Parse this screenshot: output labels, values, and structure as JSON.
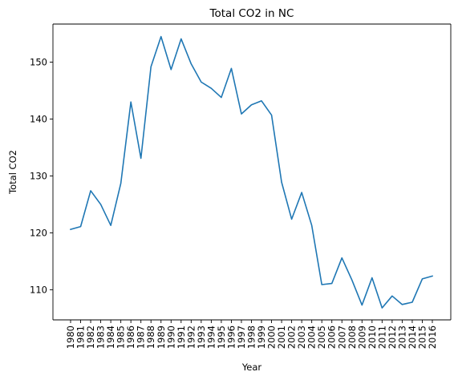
{
  "chart_data": {
    "type": "line",
    "title": "Total CO2 in NC",
    "xlabel": "Year",
    "ylabel": "Total CO2",
    "x": [
      "1980",
      "1981",
      "1982",
      "1983",
      "1984",
      "1985",
      "1986",
      "1987",
      "1988",
      "1989",
      "1990",
      "1991",
      "1992",
      "1993",
      "1994",
      "1995",
      "1996",
      "1997",
      "1998",
      "1999",
      "2000",
      "2001",
      "2002",
      "2003",
      "2004",
      "2005",
      "2006",
      "2007",
      "2008",
      "2009",
      "2010",
      "2011",
      "2012",
      "2013",
      "2014",
      "2015",
      "2016"
    ],
    "series": [
      {
        "name": "",
        "values": [
          120.6,
          121.1,
          127.4,
          125.0,
          121.3,
          128.7,
          143.0,
          133.1,
          149.2,
          154.5,
          148.7,
          154.1,
          149.7,
          146.5,
          145.4,
          143.8,
          148.9,
          140.9,
          142.5,
          143.2,
          140.7,
          128.9,
          122.4,
          127.1,
          121.3,
          110.9,
          111.1,
          115.6,
          111.7,
          107.3,
          112.1,
          106.8,
          108.9,
          107.4,
          107.8,
          111.9,
          112.4
        ]
      }
    ],
    "ylim": [
      104.7,
      156.7
    ],
    "yticks": [
      110,
      120,
      130,
      140,
      150
    ],
    "grid": false,
    "colors": {
      "line": "#1f77b4"
    }
  }
}
